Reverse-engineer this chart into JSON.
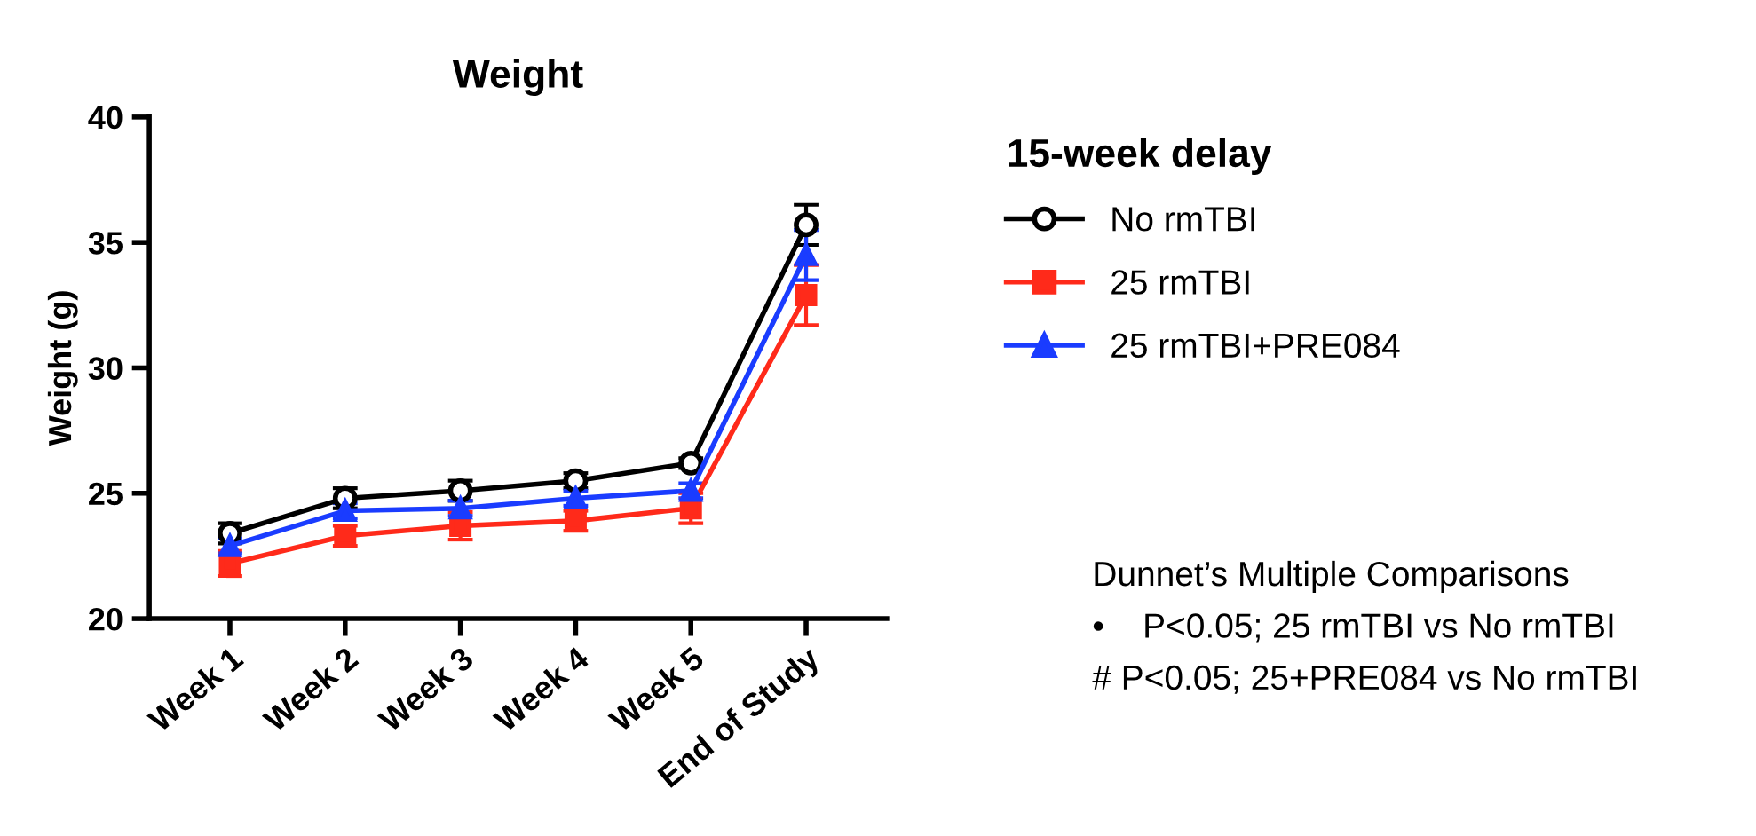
{
  "chart_data": {
    "type": "line",
    "title": "Weight",
    "ylabel": "Weight (g)",
    "legend_title": "15-week delay",
    "categories": [
      "Week 1",
      "Week 2",
      "Week 3",
      "Week 4",
      "Week 5",
      "End of Study"
    ],
    "ylim": [
      20,
      40
    ],
    "yticks": [
      20,
      25,
      30,
      35,
      40
    ],
    "grid": false,
    "legend": "right",
    "series": [
      {
        "name": "No rmTBI",
        "color": "#000000",
        "marker": "circle",
        "values": [
          23.4,
          24.8,
          25.1,
          25.5,
          26.2,
          35.7
        ],
        "errors": [
          0.4,
          0.4,
          0.4,
          0.3,
          0.2,
          0.8
        ]
      },
      {
        "name": "25 rmTBI",
        "color": "#ff2a1a",
        "marker": "square",
        "values": [
          22.2,
          23.3,
          23.7,
          23.9,
          24.4,
          32.9
        ],
        "errors": [
          0.5,
          0.4,
          0.55,
          0.4,
          0.6,
          1.2
        ]
      },
      {
        "name": "25 rmTBI+PRE084",
        "color": "#1a3cff",
        "marker": "triangle",
        "values": [
          22.9,
          24.3,
          24.4,
          24.8,
          25.1,
          34.5
        ],
        "errors": [
          0.3,
          0.3,
          0.3,
          0.3,
          0.3,
          1.0
        ]
      }
    ],
    "annotations": [
      "Dunnet’s Multiple Comparisons",
      "•    P<0.05; 25 rmTBI vs No rmTBI",
      "# P<0.05; 25+PRE084 vs No rmTBI"
    ]
  }
}
